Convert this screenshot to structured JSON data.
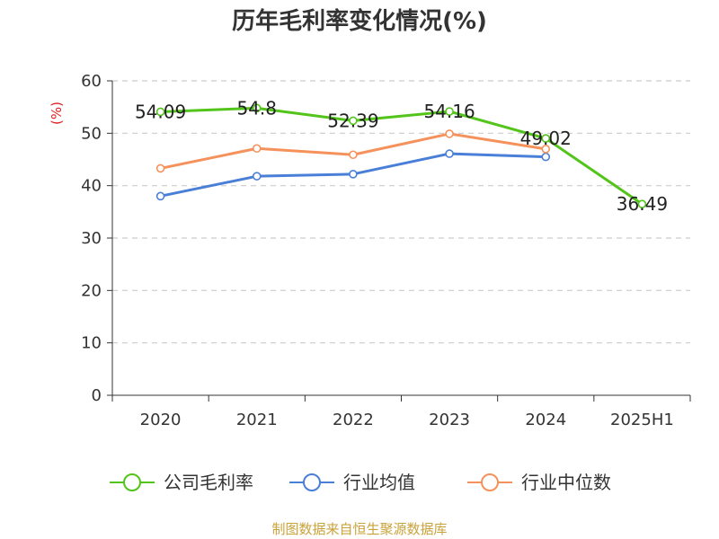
{
  "chart_data": {
    "type": "line",
    "title": "历年毛利率变化情况(%)",
    "ylabel": "(%)",
    "categories": [
      "2020",
      "2021",
      "2022",
      "2023",
      "2024",
      "2025H1"
    ],
    "ylim": [
      0,
      60
    ],
    "yticks": [
      "0",
      "10",
      "20",
      "30",
      "40",
      "50",
      "60"
    ],
    "grid": true,
    "legend_position": "bottom",
    "series": [
      {
        "name": "公司毛利率",
        "color": "#52c41a",
        "values": [
          54.09,
          54.8,
          52.39,
          54.16,
          49.02,
          36.49
        ],
        "labels": [
          "54.09",
          "54.8",
          "52.39",
          "54.16",
          "49.02",
          "36.49"
        ]
      },
      {
        "name": "行业均值",
        "color": "#4a7fd8",
        "values": [
          38.0,
          41.8,
          42.2,
          46.1,
          45.5,
          null
        ]
      },
      {
        "name": "行业中位数",
        "color": "#f5915b",
        "values": [
          43.3,
          47.1,
          45.9,
          49.9,
          47.0,
          null
        ]
      }
    ]
  },
  "footer": {
    "source": "制图数据来自恒生聚源数据库"
  },
  "colors": {
    "axis": "#333333",
    "grid": "#cccccc",
    "ylabel": "#e02020",
    "source": "#c9a23a"
  }
}
